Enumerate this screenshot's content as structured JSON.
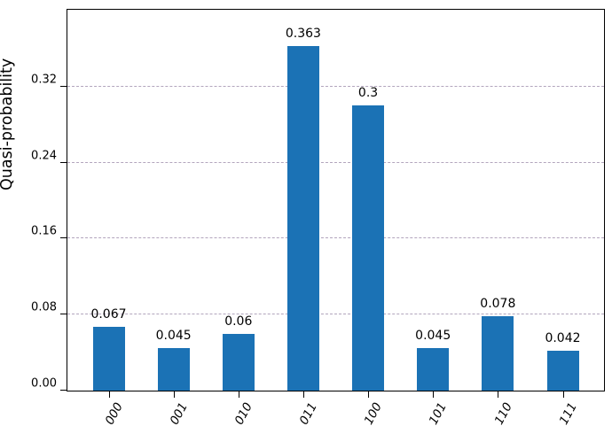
{
  "chart_data": {
    "type": "bar",
    "title": "",
    "xlabel": "",
    "ylabel": "Quasi-probability",
    "categories": [
      "000",
      "001",
      "010",
      "011",
      "100",
      "101",
      "110",
      "111"
    ],
    "values": [
      0.067,
      0.045,
      0.06,
      0.363,
      0.3,
      0.045,
      0.078,
      0.042
    ],
    "bar_labels": [
      "0.067",
      "0.045",
      "0.06",
      "0.363",
      "0.3",
      "0.045",
      "0.078",
      "0.042"
    ],
    "yticks": [
      0.0,
      0.08,
      0.16,
      0.24,
      0.32
    ],
    "ytick_labels": [
      "0.00",
      "0.08",
      "0.16",
      "0.24",
      "0.32"
    ],
    "ylim": [
      0,
      0.401
    ],
    "grid": "y-axis, dashed",
    "legend_position": "none",
    "bar_color": "#1b72b5",
    "grid_color": "#b2a5bd",
    "axis_color": "#000000"
  }
}
